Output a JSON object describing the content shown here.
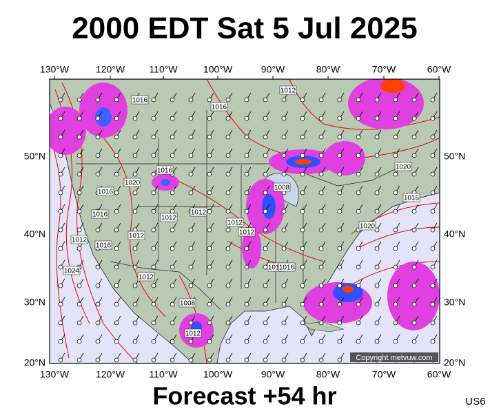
{
  "header": {
    "title": "2000 EDT Sat 5 Jul 2025"
  },
  "footer": {
    "forecast": "Forecast +54 hr",
    "product": "US6",
    "copyright": "Copyright metvuw.com"
  },
  "map": {
    "longitude_labels": [
      "130°W",
      "120°W",
      "110°W",
      "100°W",
      "90°W",
      "80°W",
      "70°W",
      "60°W"
    ],
    "latitude_labels": [
      "50°N",
      "40°N",
      "30°N",
      "20°N"
    ],
    "isobar_labels": [
      "1012",
      "1016",
      "1016",
      "1016",
      "1020",
      "1016",
      "1016",
      "1012",
      "1012",
      "1008",
      "1012",
      "1012",
      "1012",
      "1016",
      "1012",
      "1020",
      "1016",
      "1020",
      "1024",
      "1012",
      "1008",
      "1012",
      "1016",
      "1016"
    ]
  }
}
